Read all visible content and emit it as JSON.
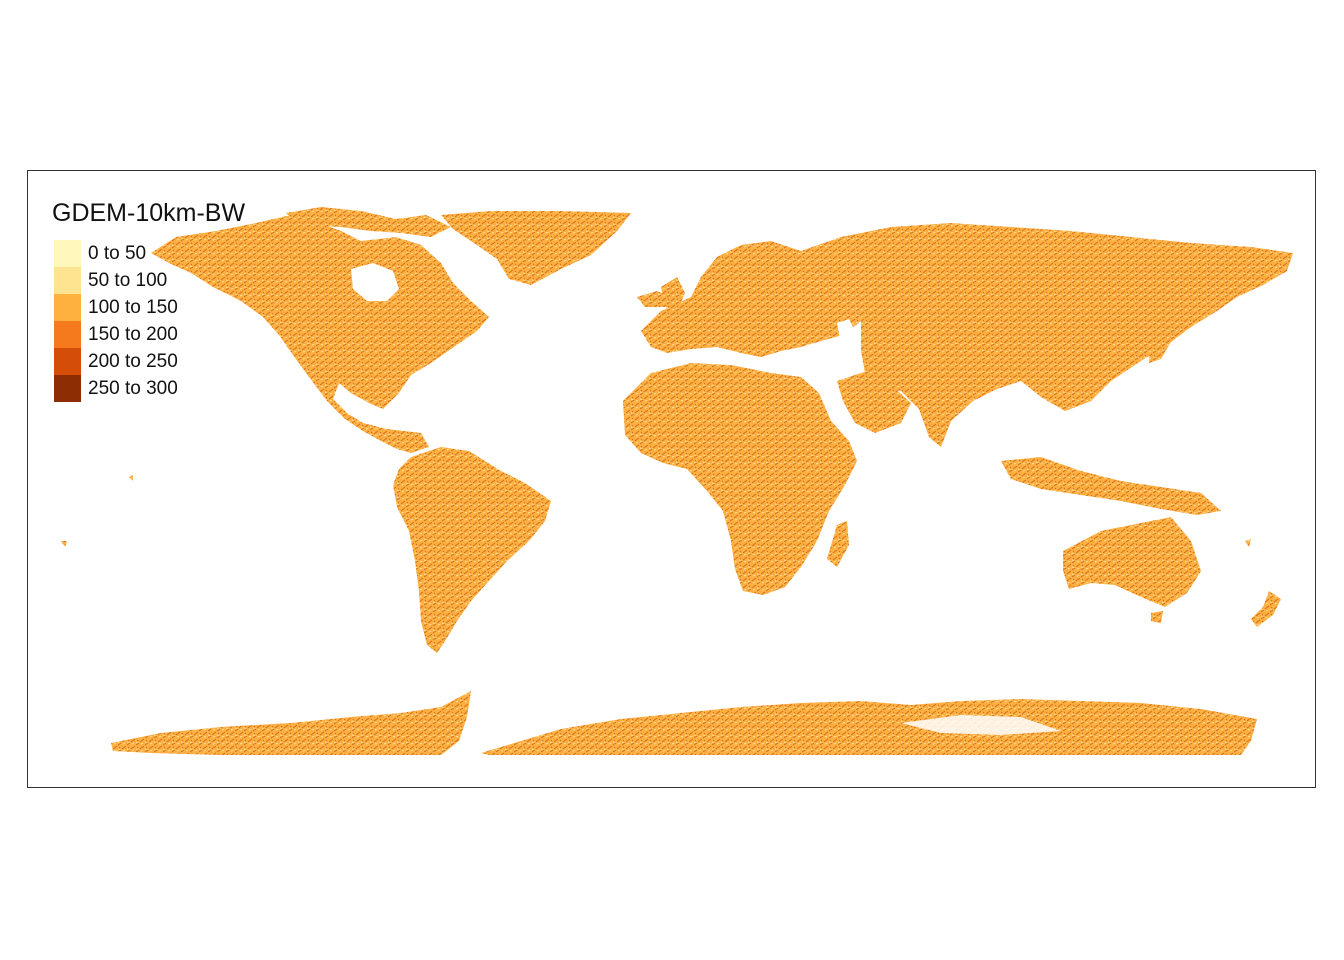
{
  "map": {
    "title": "GDEM-10km-BW",
    "legend": [
      {
        "label": "0 to 50",
        "color": "#FFF7BC"
      },
      {
        "label": "50 to 100",
        "color": "#FEE391"
      },
      {
        "label": "100 to 150",
        "color": "#FEB13F"
      },
      {
        "label": "150 to 200",
        "color": "#F57A1E"
      },
      {
        "label": "200 to 250",
        "color": "#D44E09"
      },
      {
        "label": "250 to 300",
        "color": "#8C2D04"
      }
    ],
    "land_color": "#FDB042",
    "shadow_color": "#C24E0C",
    "highlight_color": "#FEE9B0",
    "frame_color": "#333333"
  }
}
